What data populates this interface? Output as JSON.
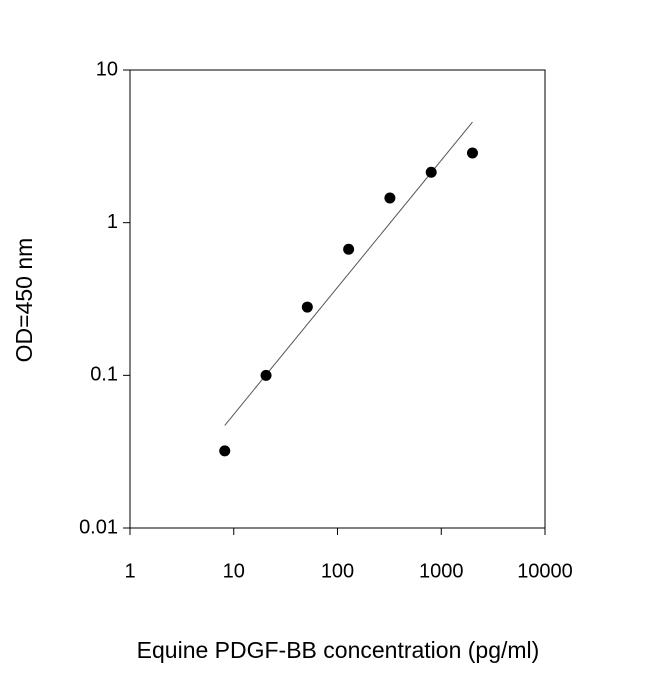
{
  "chart_data": {
    "type": "scatter",
    "xlabel": "Equine PDGF-BB concentration (pg/ml)",
    "ylabel": "OD=450 nm",
    "x": [
      8.19,
      20.48,
      51.2,
      128,
      320,
      800,
      2000
    ],
    "values": [
      0.032,
      0.1,
      0.28,
      0.67,
      1.45,
      2.14,
      2.86
    ],
    "color": "#000000",
    "fit": {
      "x": [
        8.19,
        2000
      ],
      "values": [
        0.047,
        4.56
      ],
      "color": "#555555"
    },
    "xscale": "log",
    "yscale": "log",
    "xlim": [
      1,
      10000
    ],
    "xticks": [
      1,
      10,
      100,
      1000,
      10000
    ],
    "ylim": [
      0.01,
      10
    ],
    "yticks": [
      0.01,
      0.1,
      1,
      10
    ],
    "grid": false
  }
}
